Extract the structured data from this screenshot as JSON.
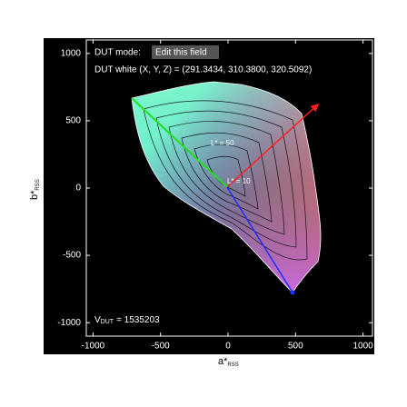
{
  "plot": {
    "mode_label": "DUT mode:",
    "mode_field": "Edit this field",
    "white_text": "DUT white (X, Y, Z) = (291.3434, 310.3800, 320.5092)",
    "annotations": [
      "L* = 50",
      "L* = 10"
    ],
    "volume": {
      "symbol": "V",
      "subscript": "DUT",
      "value": "= 1535203"
    },
    "xlabel": {
      "symbol": "a*",
      "subscript": "RSS"
    },
    "ylabel": {
      "symbol": "b*",
      "subscript": "RSS"
    },
    "xlim": [
      -1050,
      1070
    ],
    "ylim": [
      -1100,
      1100
    ],
    "xticks": [
      -1000,
      -500,
      0,
      500,
      1000
    ],
    "yticks": [
      -1000,
      -500,
      0,
      500,
      1000
    ]
  }
}
